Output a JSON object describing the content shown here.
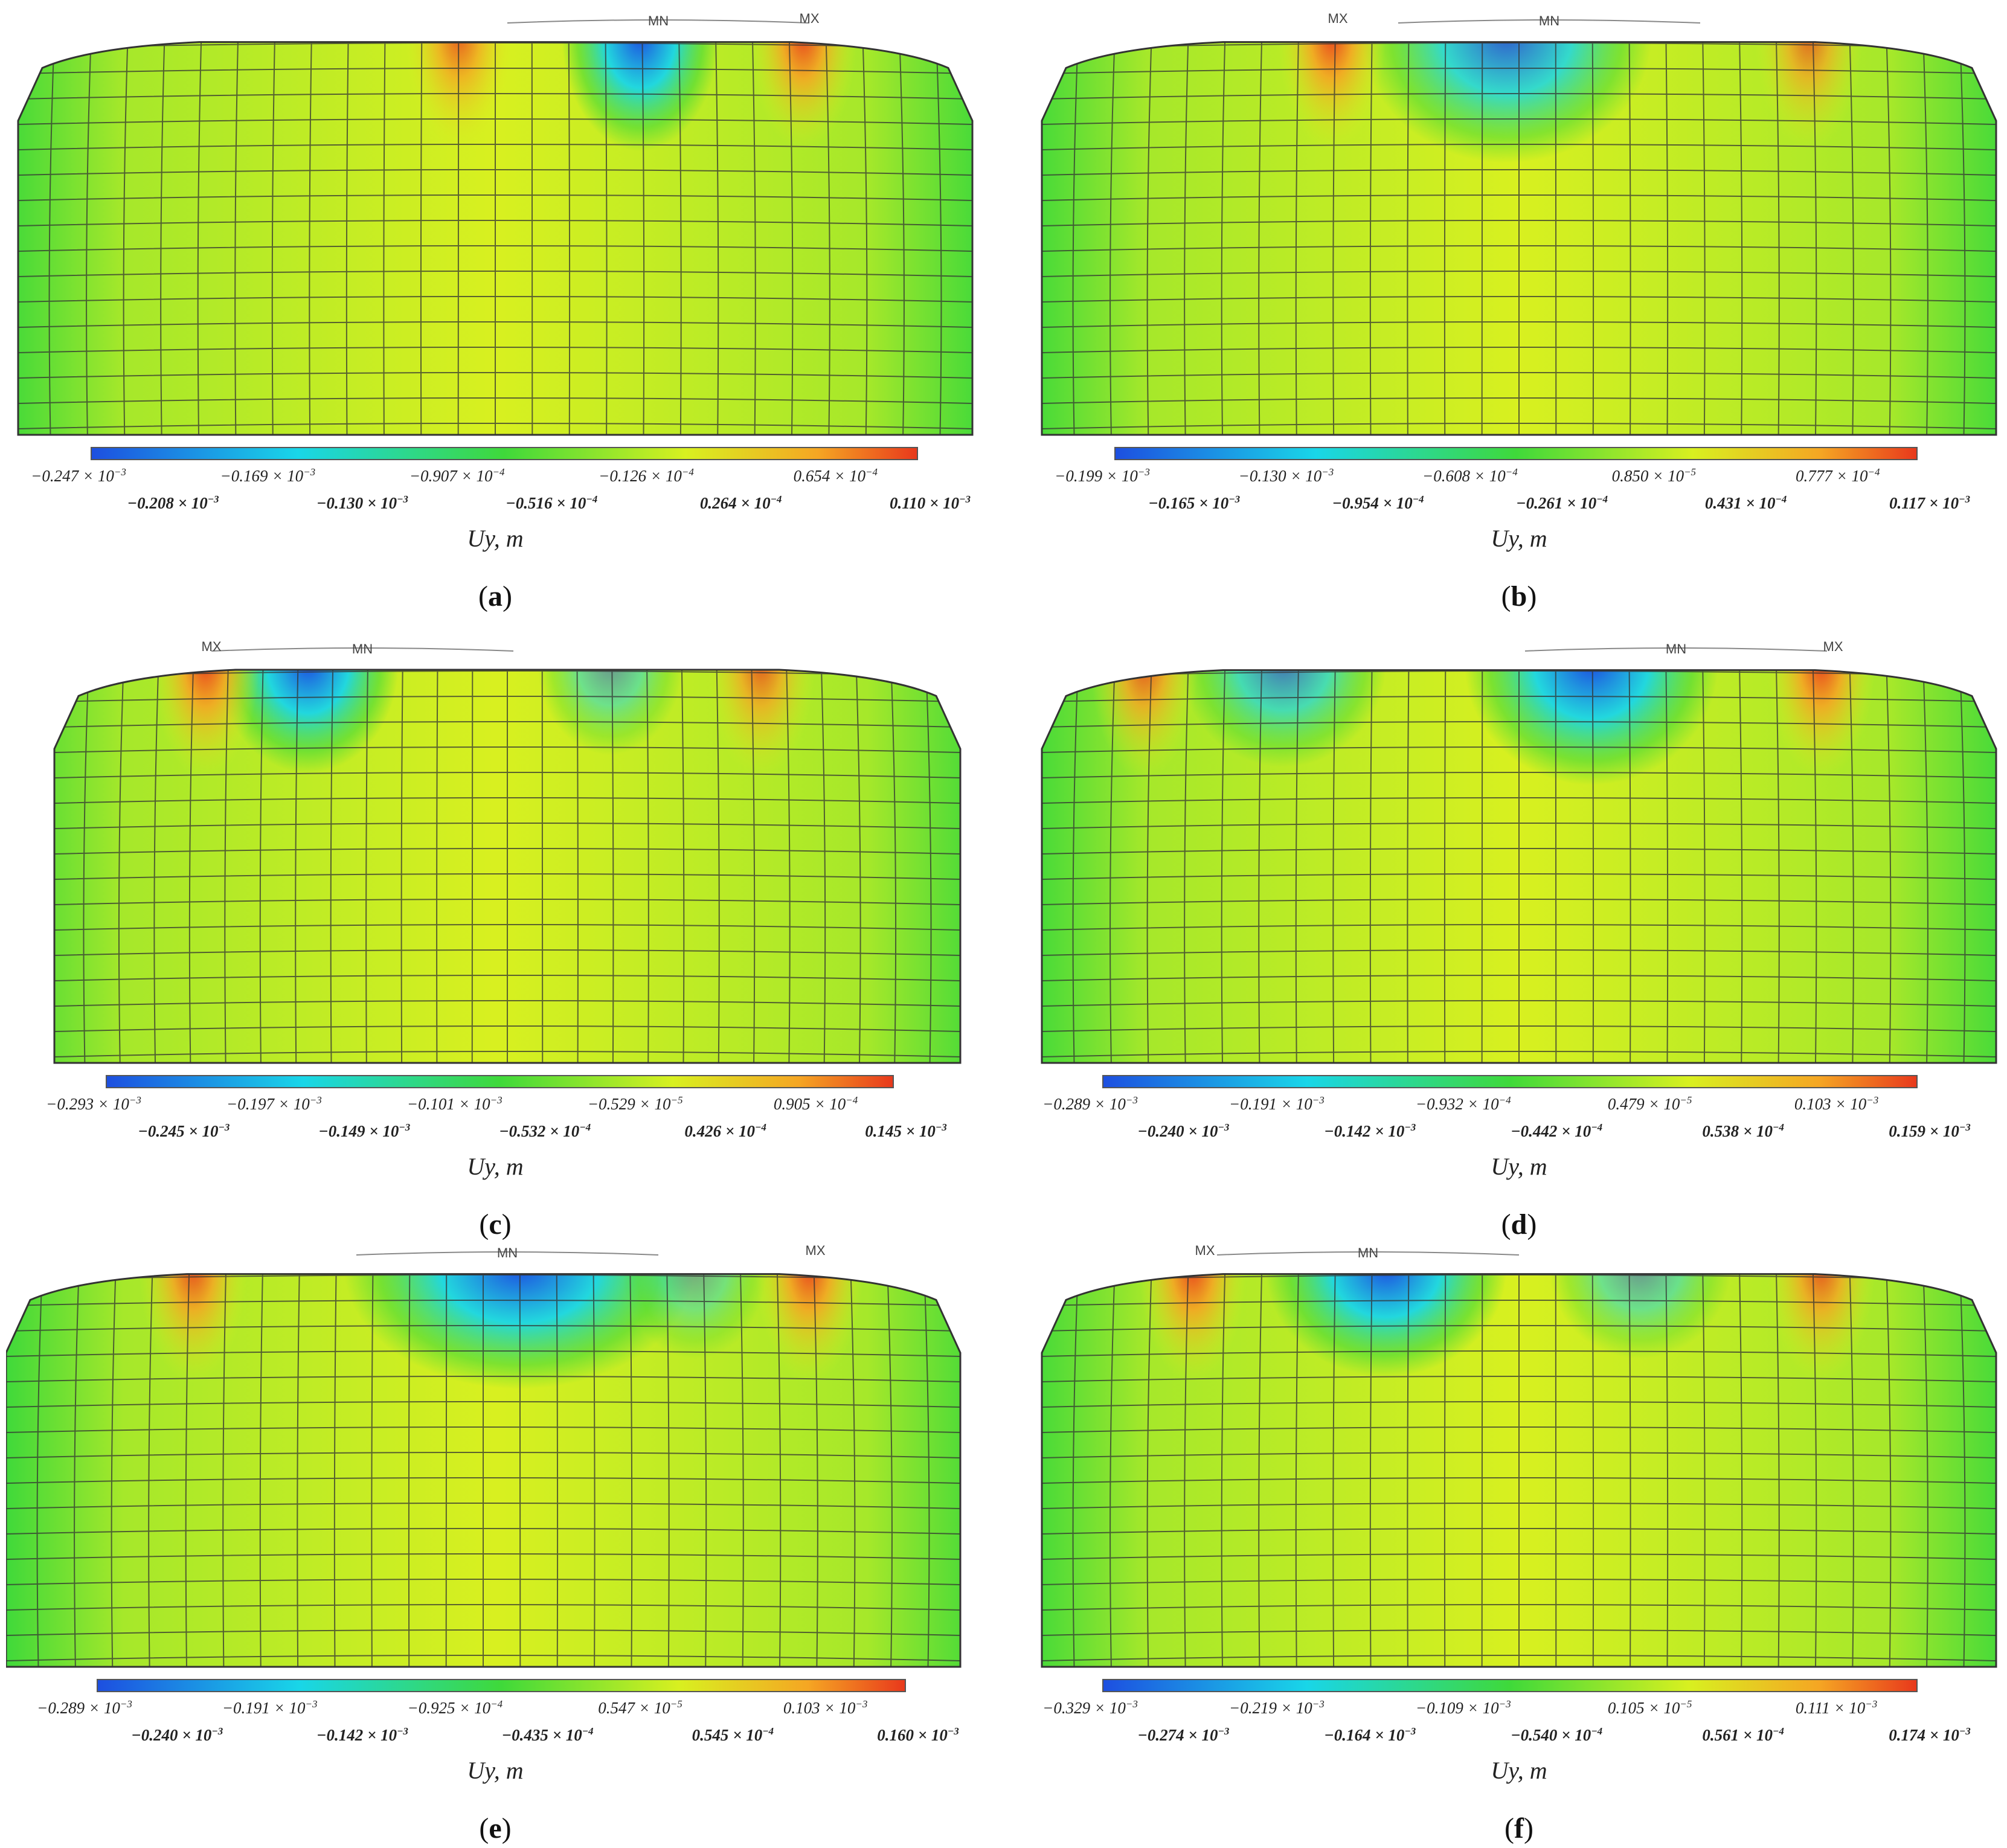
{
  "quantity_label": "Uy, m",
  "marker_min": "MN",
  "marker_max": "MX",
  "colors": {
    "blue": "#1d4fe0",
    "cyan": "#19d6e8",
    "green": "#3fd93a",
    "yellow": "#d8f020",
    "orange": "#f5a623",
    "red": "#e8391c",
    "mesh": "#333333"
  },
  "panels": [
    {
      "id": "a",
      "label": "a",
      "upper_ticks": [
        {
          "m": "−0.247",
          "e": "−3"
        },
        {
          "m": "−0.169",
          "e": "−3"
        },
        {
          "m": "−0.907",
          "e": "−4"
        },
        {
          "m": "−0.126",
          "e": "−4"
        },
        {
          "m": "0.654",
          "e": "−4"
        }
      ],
      "lower_ticks": [
        {
          "m": "−0.208",
          "e": "−3"
        },
        {
          "m": "−0.130",
          "e": "−3"
        },
        {
          "m": "−0.516",
          "e": "−4"
        },
        {
          "m": "0.264",
          "e": "−4"
        },
        {
          "m": "0.110",
          "e": "−3"
        }
      ]
    },
    {
      "id": "b",
      "label": "b",
      "upper_ticks": [
        {
          "m": "−0.199",
          "e": "−3"
        },
        {
          "m": "−0.130",
          "e": "−3"
        },
        {
          "m": "−0.608",
          "e": "−4"
        },
        {
          "m": "0.850",
          "e": "−5"
        },
        {
          "m": "0.777",
          "e": "−4"
        }
      ],
      "lower_ticks": [
        {
          "m": "−0.165",
          "e": "−3"
        },
        {
          "m": "−0.954",
          "e": "−4"
        },
        {
          "m": "−0.261",
          "e": "−4"
        },
        {
          "m": "0.431",
          "e": "−4"
        },
        {
          "m": "0.117",
          "e": "−3"
        }
      ]
    },
    {
      "id": "c",
      "label": "c",
      "upper_ticks": [
        {
          "m": "−0.293",
          "e": "−3"
        },
        {
          "m": "−0.197",
          "e": "−3"
        },
        {
          "m": "−0.101",
          "e": "−3"
        },
        {
          "m": "−0.529",
          "e": "−5"
        },
        {
          "m": "0.905",
          "e": "−4"
        }
      ],
      "lower_ticks": [
        {
          "m": "−0.245",
          "e": "−3"
        },
        {
          "m": "−0.149",
          "e": "−3"
        },
        {
          "m": "−0.532",
          "e": "−4"
        },
        {
          "m": "0.426",
          "e": "−4"
        },
        {
          "m": "0.145",
          "e": "−3"
        }
      ]
    },
    {
      "id": "d",
      "label": "d",
      "upper_ticks": [
        {
          "m": "−0.289",
          "e": "−3"
        },
        {
          "m": "−0.191",
          "e": "−3"
        },
        {
          "m": "−0.932",
          "e": "−4"
        },
        {
          "m": "0.479",
          "e": "−5"
        },
        {
          "m": "0.103",
          "e": "−3"
        }
      ],
      "lower_ticks": [
        {
          "m": "−0.240",
          "e": "−3"
        },
        {
          "m": "−0.142",
          "e": "−3"
        },
        {
          "m": "−0.442",
          "e": "−4"
        },
        {
          "m": "0.538",
          "e": "−4"
        },
        {
          "m": "0.159",
          "e": "−3"
        }
      ]
    },
    {
      "id": "e",
      "label": "e",
      "upper_ticks": [
        {
          "m": "−0.289",
          "e": "−3"
        },
        {
          "m": "−0.191",
          "e": "−3"
        },
        {
          "m": "−0.925",
          "e": "−4"
        },
        {
          "m": "0.547",
          "e": "−5"
        },
        {
          "m": "0.103",
          "e": "−3"
        }
      ],
      "lower_ticks": [
        {
          "m": "−0.240",
          "e": "−3"
        },
        {
          "m": "−0.142",
          "e": "−3"
        },
        {
          "m": "−0.435",
          "e": "−4"
        },
        {
          "m": "0.545",
          "e": "−4"
        },
        {
          "m": "0.160",
          "e": "−3"
        }
      ]
    },
    {
      "id": "f",
      "label": "f",
      "upper_ticks": [
        {
          "m": "−0.329",
          "e": "−3"
        },
        {
          "m": "−0.219",
          "e": "−3"
        },
        {
          "m": "−0.109",
          "e": "−3"
        },
        {
          "m": "0.105",
          "e": "−5"
        },
        {
          "m": "0.111",
          "e": "−3"
        }
      ],
      "lower_ticks": [
        {
          "m": "−0.274",
          "e": "−3"
        },
        {
          "m": "−0.164",
          "e": "−3"
        },
        {
          "m": "−0.540",
          "e": "−4"
        },
        {
          "m": "0.561",
          "e": "−4"
        },
        {
          "m": "0.174",
          "e": "−3"
        }
      ]
    }
  ]
}
